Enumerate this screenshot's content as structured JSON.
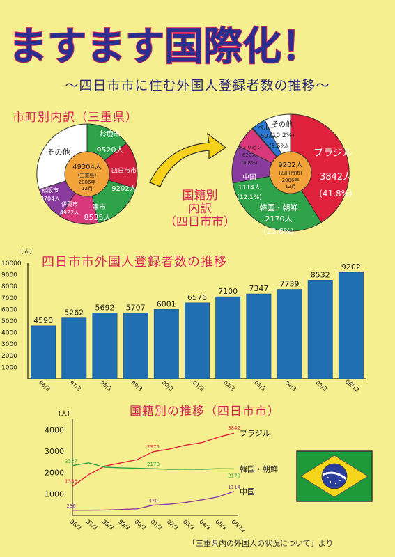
{
  "title": "ますます国際化！",
  "subtitle": "〜四日市市に住む外国人登録者数の推移〜",
  "colors": {
    "background": "#f6ef8f",
    "title_blue": "#2a2f8f",
    "title_pink": "#d6245a",
    "bar_blue": "#1f6fb2",
    "brazil": "#e0213b",
    "korea": "#2fa34a",
    "china": "#8a3c9e",
    "peru": "#2a78d0",
    "philippines": "#d9397a",
    "other": "#ffffff"
  },
  "pie1": {
    "title": "市町別内訳（三重県）",
    "center": [
      "49304人",
      "(三重県)",
      "2006年",
      "12月"
    ],
    "slices": [
      {
        "name": "鈴鹿市",
        "value": "9520人"
      },
      {
        "name": "四日市市",
        "value": "9202人"
      },
      {
        "name": "津市",
        "value": "8535人"
      },
      {
        "name": "伊賀市",
        "value": "4922人"
      },
      {
        "name": "松阪市",
        "value": "3704人"
      },
      {
        "name": "その他",
        "value": ""
      }
    ]
  },
  "pie2": {
    "title_lines": [
      "国籍別",
      "内訳",
      "（四日市市）"
    ],
    "center": [
      "9202人",
      "(四日市市)",
      "2006年",
      "12月"
    ],
    "slices": [
      {
        "name": "ブラジル",
        "value": "3842人",
        "pct": "(41.8%)"
      },
      {
        "name": "韓国・朝鮮",
        "value": "2170人",
        "pct": "(23.6%)"
      },
      {
        "name": "中国",
        "value": "1114人",
        "pct": "(12.1%)"
      },
      {
        "name": "フィリピン",
        "value": "622人",
        "pct": "(6.8%)"
      },
      {
        "name": "ペルー",
        "value": "507人",
        "pct": "(5.5%)"
      },
      {
        "name": "その他",
        "value": "",
        "pct": "(10.2%)"
      }
    ]
  },
  "chart_data": [
    {
      "type": "bar",
      "title": "四日市市外国人登録者数の推移",
      "ylabel": "(人)",
      "categories": [
        "96/3",
        "97/3",
        "98/3",
        "99/3",
        "00/3",
        "01/3",
        "02/3",
        "03/3",
        "04/3",
        "05/3",
        "06/12"
      ],
      "values": [
        4590,
        5262,
        5692,
        5707,
        6001,
        6576,
        7100,
        7347,
        7739,
        8532,
        9202
      ],
      "ylim": [
        0,
        10000
      ],
      "yticks": [
        "10000",
        "9000",
        "8000",
        "7000",
        "6000",
        "5000",
        "4000",
        "3000",
        "2000",
        "1000"
      ]
    },
    {
      "type": "line",
      "title": "国籍別の推移（四日市市）",
      "ylabel": "(人)",
      "categories": [
        "96/3",
        "97/3",
        "98/3",
        "99/3",
        "00/3",
        "01/3",
        "02/3",
        "03/3",
        "04/3",
        "05/3",
        "06/12"
      ],
      "ylim": [
        0,
        4500
      ],
      "yticks": [
        "4000",
        "3000",
        "2000",
        "1000"
      ],
      "series": [
        {
          "name": "ブラジル",
          "values": [
            1356,
            1900,
            2300,
            2450,
            2600,
            2975,
            3100,
            3280,
            3400,
            3650,
            3842
          ],
          "labels": [
            "1356",
            "2975",
            "3842"
          ]
        },
        {
          "name": "韓国・朝鮮",
          "values": [
            2327,
            2450,
            2250,
            2220,
            2200,
            2178,
            2150,
            2160,
            2150,
            2180,
            2170
          ],
          "labels": [
            "2327",
            "2178",
            "2170"
          ]
        },
        {
          "name": "中国",
          "values": [
            236,
            240,
            245,
            270,
            300,
            470,
            520,
            600,
            720,
            860,
            1114
          ],
          "labels": [
            "236",
            "470",
            "1114"
          ]
        }
      ]
    }
  ],
  "source": "「三重県内の外国人の状況について」より"
}
